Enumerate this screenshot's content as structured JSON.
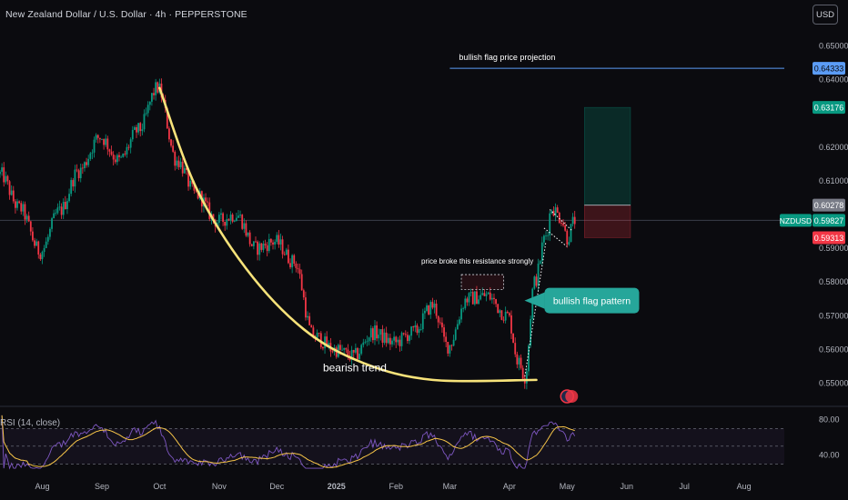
{
  "header": {
    "title": "New Zealand Dollar / U.S. Dollar · 4h · PEPPERSTONE",
    "currency_button": "USD"
  },
  "chart_data": {
    "type": "candlestick",
    "symbol": "NZDUSD",
    "timeframe": "4h",
    "x_labels": [
      "Aug",
      "Sep",
      "Oct",
      "Nov",
      "Dec",
      "2025",
      "Feb",
      "Mar",
      "Apr",
      "May",
      "Jun",
      "Jul",
      "Aug"
    ],
    "price_ticks": [
      "0.65000",
      "0.64000",
      "0.62000",
      "0.61000",
      "0.59000",
      "0.58000",
      "0.57000",
      "0.56000",
      "0.55000"
    ],
    "ylim": [
      0.5445,
      0.6555
    ],
    "price_path": [
      {
        "date": "2024-07-10",
        "price": 0.612
      },
      {
        "date": "2024-07-20",
        "price": 0.602
      },
      {
        "date": "2024-07-31",
        "price": 0.589
      },
      {
        "date": "2024-08-10",
        "price": 0.601
      },
      {
        "date": "2024-08-20",
        "price": 0.613
      },
      {
        "date": "2024-08-31",
        "price": 0.623
      },
      {
        "date": "2024-09-10",
        "price": 0.616
      },
      {
        "date": "2024-09-20",
        "price": 0.625
      },
      {
        "date": "2024-09-30",
        "price": 0.6375
      },
      {
        "date": "2024-10-10",
        "price": 0.616
      },
      {
        "date": "2024-10-20",
        "price": 0.606
      },
      {
        "date": "2024-10-31",
        "price": 0.598
      },
      {
        "date": "2024-11-10",
        "price": 0.6
      },
      {
        "date": "2024-11-20",
        "price": 0.59
      },
      {
        "date": "2024-11-30",
        "price": 0.592
      },
      {
        "date": "2024-12-10",
        "price": 0.586
      },
      {
        "date": "2024-12-20",
        "price": 0.564
      },
      {
        "date": "2024-12-31",
        "price": 0.56
      },
      {
        "date": "2025-01-10",
        "price": 0.558
      },
      {
        "date": "2025-01-20",
        "price": 0.565
      },
      {
        "date": "2025-01-31",
        "price": 0.562
      },
      {
        "date": "2025-02-10",
        "price": 0.565
      },
      {
        "date": "2025-02-20",
        "price": 0.573
      },
      {
        "date": "2025-02-28",
        "price": 0.561
      },
      {
        "date": "2025-03-10",
        "price": 0.575
      },
      {
        "date": "2025-03-20",
        "price": 0.576
      },
      {
        "date": "2025-03-31",
        "price": 0.57
      },
      {
        "date": "2025-04-06",
        "price": 0.556
      },
      {
        "date": "2025-04-09",
        "price": 0.552
      },
      {
        "date": "2025-04-14",
        "price": 0.58
      },
      {
        "date": "2025-04-20",
        "price": 0.594
      },
      {
        "date": "2025-04-23",
        "price": 0.602
      },
      {
        "date": "2025-04-28",
        "price": 0.599
      },
      {
        "date": "2025-05-01",
        "price": 0.593
      },
      {
        "date": "2025-05-05",
        "price": 0.5983
      }
    ],
    "price_labels": [
      {
        "text": "0.64333",
        "price": 0.64333,
        "color": "#5b9cf6",
        "text_color": "#0b0b0f"
      },
      {
        "text": "0.63176",
        "price": 0.63176,
        "color": "#089981",
        "text_color": "#ffffff"
      },
      {
        "text": "0.60278",
        "price": 0.60278,
        "color": "#787b86",
        "text_color": "#ffffff"
      },
      {
        "text": "0.59827",
        "price": 0.59827,
        "color": "#089981",
        "text_color": "#ffffff"
      },
      {
        "text": "0.59313",
        "price": 0.59313,
        "color": "#f23645",
        "text_color": "#ffffff"
      }
    ],
    "symbol_tag": {
      "text": "NZDUSD",
      "price": 0.59827,
      "color": "#089981"
    },
    "projection_line": {
      "price": 0.64333,
      "from_date": "2025-03-01",
      "label": "bullish flag price projection"
    },
    "position": {
      "from_date": "2025-05-10",
      "to_date": "2025-06-03",
      "entry": 0.60278,
      "take_profit": 0.63176,
      "stop": 0.59313
    },
    "resistance_box": {
      "from_date": "2025-03-07",
      "to_date": "2025-03-29",
      "top": 0.5822,
      "bottom": 0.5805,
      "label": "price broke this resistance strongly"
    },
    "flag_lines": [
      [
        {
          "date": "2025-04-09",
          "price": 0.552
        },
        {
          "date": "2025-04-20",
          "price": 0.592
        }
      ],
      [
        {
          "date": "2025-04-22",
          "price": 0.6015
        },
        {
          "date": "2025-05-04",
          "price": 0.595
        }
      ],
      [
        {
          "date": "2025-04-19",
          "price": 0.596
        },
        {
          "date": "2025-05-01",
          "price": 0.5905
        }
      ]
    ],
    "callout": {
      "text": "bullish flag pattern",
      "date": "2025-04-24",
      "price": 0.5745,
      "color": "#26a69a"
    },
    "trend_curve": {
      "label": "bearish trend",
      "points": [
        {
          "date": "2024-10-01",
          "price": 0.6375
        },
        {
          "date": "2024-10-20",
          "price": 0.608
        },
        {
          "date": "2024-11-15",
          "price": 0.584
        },
        {
          "date": "2024-12-15",
          "price": 0.566
        },
        {
          "date": "2025-01-15",
          "price": 0.556
        },
        {
          "date": "2025-02-20",
          "price": 0.551
        },
        {
          "date": "2025-04-15",
          "price": 0.551
        }
      ]
    },
    "rsi": {
      "legend": "RSI (14, close)",
      "ticks": [
        "80.00",
        "40.00"
      ],
      "ylim": [
        20,
        90
      ],
      "levels": [
        70,
        50,
        30
      ]
    }
  },
  "colors": {
    "background": "#0b0b0f",
    "up": "#089981",
    "down": "#f23645",
    "curve": "#f7e37a",
    "rsi_line": "#7e57c2",
    "rsi_ma": "#f7c548",
    "callout": "#26a69a"
  }
}
